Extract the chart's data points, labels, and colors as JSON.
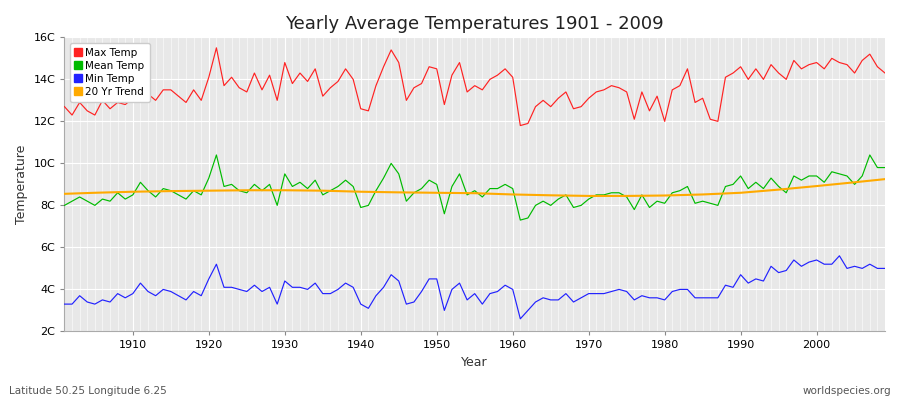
{
  "title": "Yearly Average Temperatures 1901 - 2009",
  "xlabel": "Year",
  "ylabel": "Temperature",
  "subtitle": "Latitude 50.25 Longitude 6.25",
  "watermark": "worldspecies.org",
  "years": [
    1901,
    1902,
    1903,
    1904,
    1905,
    1906,
    1907,
    1908,
    1909,
    1910,
    1911,
    1912,
    1913,
    1914,
    1915,
    1916,
    1917,
    1918,
    1919,
    1920,
    1921,
    1922,
    1923,
    1924,
    1925,
    1926,
    1927,
    1928,
    1929,
    1930,
    1931,
    1932,
    1933,
    1934,
    1935,
    1936,
    1937,
    1938,
    1939,
    1940,
    1941,
    1942,
    1943,
    1944,
    1945,
    1946,
    1947,
    1948,
    1949,
    1950,
    1951,
    1952,
    1953,
    1954,
    1955,
    1956,
    1957,
    1958,
    1959,
    1960,
    1961,
    1962,
    1963,
    1964,
    1965,
    1966,
    1967,
    1968,
    1969,
    1970,
    1971,
    1972,
    1973,
    1974,
    1975,
    1976,
    1977,
    1978,
    1979,
    1980,
    1981,
    1982,
    1983,
    1984,
    1985,
    1986,
    1987,
    1988,
    1989,
    1990,
    1991,
    1992,
    1993,
    1994,
    1995,
    1996,
    1997,
    1998,
    1999,
    2000,
    2001,
    2002,
    2003,
    2004,
    2005,
    2006,
    2007,
    2008,
    2009
  ],
  "max_temp": [
    12.7,
    12.3,
    12.9,
    12.5,
    12.3,
    13.0,
    12.6,
    12.9,
    12.8,
    13.1,
    14.0,
    13.3,
    13.0,
    13.5,
    13.5,
    13.2,
    12.9,
    13.5,
    13.0,
    14.1,
    15.5,
    13.7,
    14.1,
    13.6,
    13.4,
    14.3,
    13.5,
    14.2,
    13.0,
    14.8,
    13.8,
    14.3,
    13.9,
    14.5,
    13.2,
    13.6,
    13.9,
    14.5,
    14.0,
    12.6,
    12.5,
    13.7,
    14.6,
    15.4,
    14.8,
    13.0,
    13.6,
    13.8,
    14.6,
    14.5,
    12.8,
    14.2,
    14.8,
    13.4,
    13.7,
    13.5,
    14.0,
    14.2,
    14.5,
    14.1,
    11.8,
    11.9,
    12.7,
    13.0,
    12.7,
    13.1,
    13.4,
    12.6,
    12.7,
    13.1,
    13.4,
    13.5,
    13.7,
    13.6,
    13.4,
    12.1,
    13.4,
    12.5,
    13.2,
    12.0,
    13.5,
    13.7,
    14.5,
    12.9,
    13.1,
    12.1,
    12.0,
    14.1,
    14.3,
    14.6,
    14.0,
    14.5,
    14.0,
    14.7,
    14.3,
    14.0,
    14.9,
    14.5,
    14.7,
    14.8,
    14.5,
    15.0,
    14.8,
    14.7,
    14.3,
    14.9,
    15.2,
    14.6,
    14.3
  ],
  "mean_temp": [
    8.0,
    8.2,
    8.4,
    8.2,
    8.0,
    8.3,
    8.2,
    8.6,
    8.3,
    8.5,
    9.1,
    8.7,
    8.4,
    8.8,
    8.7,
    8.5,
    8.3,
    8.7,
    8.5,
    9.3,
    10.4,
    8.9,
    9.0,
    8.7,
    8.6,
    9.0,
    8.7,
    9.0,
    8.0,
    9.5,
    8.9,
    9.1,
    8.8,
    9.2,
    8.5,
    8.7,
    8.9,
    9.2,
    8.9,
    7.9,
    8.0,
    8.7,
    9.3,
    10.0,
    9.5,
    8.2,
    8.6,
    8.8,
    9.2,
    9.0,
    7.6,
    8.9,
    9.5,
    8.5,
    8.7,
    8.4,
    8.8,
    8.8,
    9.0,
    8.8,
    7.3,
    7.4,
    8.0,
    8.2,
    8.0,
    8.3,
    8.5,
    7.9,
    8.0,
    8.3,
    8.5,
    8.5,
    8.6,
    8.6,
    8.4,
    7.8,
    8.5,
    7.9,
    8.2,
    8.1,
    8.6,
    8.7,
    8.9,
    8.1,
    8.2,
    8.1,
    8.0,
    8.9,
    9.0,
    9.4,
    8.8,
    9.1,
    8.8,
    9.3,
    8.9,
    8.6,
    9.4,
    9.2,
    9.4,
    9.4,
    9.1,
    9.6,
    9.5,
    9.4,
    9.0,
    9.4,
    10.4,
    9.8,
    9.8
  ],
  "min_temp": [
    3.3,
    3.3,
    3.7,
    3.4,
    3.3,
    3.5,
    3.4,
    3.8,
    3.6,
    3.8,
    4.3,
    3.9,
    3.7,
    4.0,
    3.9,
    3.7,
    3.5,
    3.9,
    3.7,
    4.5,
    5.2,
    4.1,
    4.1,
    4.0,
    3.9,
    4.2,
    3.9,
    4.1,
    3.3,
    4.4,
    4.1,
    4.1,
    4.0,
    4.3,
    3.8,
    3.8,
    4.0,
    4.3,
    4.1,
    3.3,
    3.1,
    3.7,
    4.1,
    4.7,
    4.4,
    3.3,
    3.4,
    3.9,
    4.5,
    4.5,
    3.0,
    4.0,
    4.3,
    3.5,
    3.8,
    3.3,
    3.8,
    3.9,
    4.2,
    4.0,
    2.6,
    3.0,
    3.4,
    3.6,
    3.5,
    3.5,
    3.8,
    3.4,
    3.6,
    3.8,
    3.8,
    3.8,
    3.9,
    4.0,
    3.9,
    3.5,
    3.7,
    3.6,
    3.6,
    3.5,
    3.9,
    4.0,
    4.0,
    3.6,
    3.6,
    3.6,
    3.6,
    4.2,
    4.1,
    4.7,
    4.3,
    4.5,
    4.4,
    5.1,
    4.8,
    4.9,
    5.4,
    5.1,
    5.3,
    5.4,
    5.2,
    5.2,
    5.6,
    5.0,
    5.1,
    5.0,
    5.2,
    5.0,
    5.0
  ],
  "trend_years": [
    1901,
    1905,
    1910,
    1915,
    1920,
    1925,
    1930,
    1935,
    1940,
    1945,
    1950,
    1955,
    1960,
    1965,
    1970,
    1975,
    1980,
    1985,
    1990,
    1995,
    2000,
    2005,
    2009
  ],
  "trend_vals": [
    8.55,
    8.6,
    8.65,
    8.68,
    8.7,
    8.72,
    8.72,
    8.7,
    8.65,
    8.62,
    8.6,
    8.58,
    8.52,
    8.48,
    8.45,
    8.45,
    8.47,
    8.52,
    8.6,
    8.75,
    8.92,
    9.1,
    9.25
  ],
  "max_color": "#ff2222",
  "mean_color": "#00bb00",
  "min_color": "#2222ff",
  "trend_color": "#ffaa00",
  "fig_bg": "#ffffff",
  "plot_bg": "#e8e8e8",
  "grid_color": "#ffffff",
  "ylim": [
    2,
    16
  ],
  "yticks": [
    2,
    4,
    6,
    8,
    10,
    12,
    14,
    16
  ],
  "ytick_labels": [
    "2C",
    "4C",
    "6C",
    "8C",
    "10C",
    "12C",
    "14C",
    "16C"
  ],
  "xlim": [
    1901,
    2009
  ],
  "xticks": [
    1910,
    1920,
    1930,
    1940,
    1950,
    1960,
    1970,
    1980,
    1990,
    2000
  ]
}
